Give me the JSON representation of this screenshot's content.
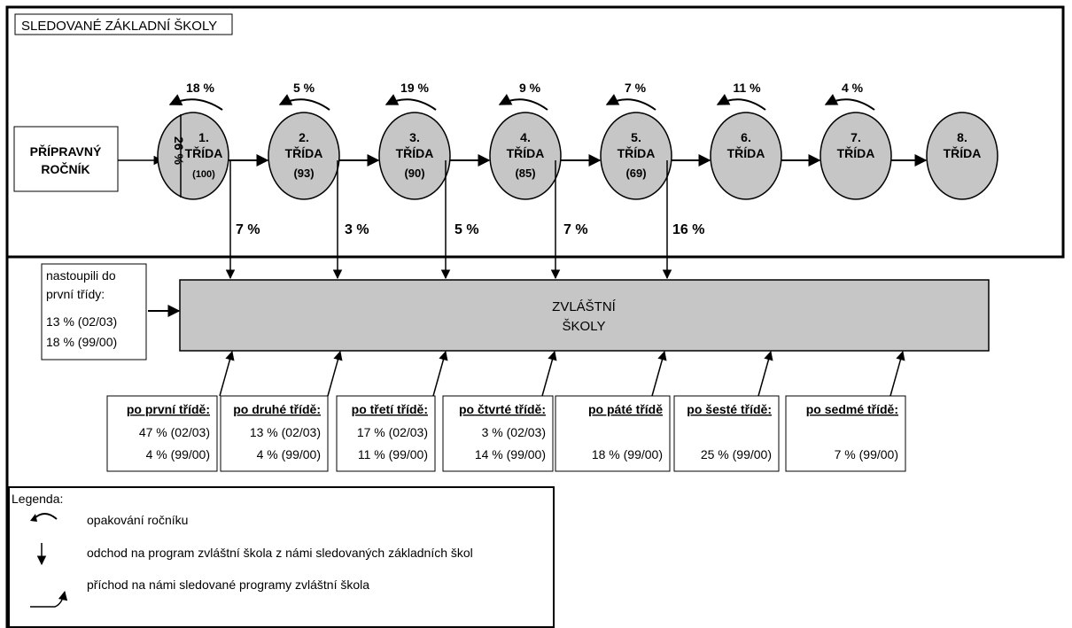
{
  "title": "SLEDOVANÉ ZÁKLADNÍ ŠKOLY",
  "preparatory": {
    "line1": "PŘÍPRAVNÝ",
    "line2": "ROČNÍK"
  },
  "grades": [
    {
      "number": "1.",
      "label": "TŘÍDA",
      "count": "(100)",
      "repeat": "18 %",
      "down": "7 %",
      "side": "26 %"
    },
    {
      "number": "2.",
      "label": "TŘÍDA",
      "count": "(93)",
      "repeat": "5 %",
      "down": "3 %"
    },
    {
      "number": "3.",
      "label": "TŘÍDA",
      "count": "(90)",
      "repeat": "19 %",
      "down": "5 %"
    },
    {
      "number": "4.",
      "label": "TŘÍDA",
      "count": "(85)",
      "repeat": "9 %",
      "down": "7 %"
    },
    {
      "number": "5.",
      "label": "TŘÍDA",
      "count": "(69)",
      "repeat": "7 %",
      "down": "16 %"
    },
    {
      "number": "6.",
      "label": "TŘÍDA",
      "count": "",
      "repeat": "11 %",
      "down": ""
    },
    {
      "number": "7.",
      "label": "TŘÍDA",
      "count": "",
      "repeat": "4 %",
      "down": ""
    },
    {
      "number": "8.",
      "label": "TŘÍDA",
      "count": "",
      "repeat": "",
      "down": ""
    }
  ],
  "entered_first": {
    "line1": "nastoupili do",
    "line2": "první třídy:",
    "line3": "13 % (02/03)",
    "line4": "18 % (99/00)"
  },
  "special_school": {
    "line1": "ZVLÁŠTNÍ",
    "line2": "ŠKOLY"
  },
  "transfers": [
    {
      "header": "po první třídě:",
      "v1": "47 % (02/03)",
      "v2": "4 % (99/00)"
    },
    {
      "header": "po druhé třídě:",
      "v1": "13 % (02/03)",
      "v2": "4 % (99/00)"
    },
    {
      "header": "po třetí třídě:",
      "v1": "17 % (02/03)",
      "v2": "11 % (99/00)"
    },
    {
      "header": "po čtvrté třídě:",
      "v1": "3 % (02/03)",
      "v2": "14 % (99/00)"
    },
    {
      "header": "po páté třídě",
      "v1": "",
      "v2": "18 % (99/00)"
    },
    {
      "header": "po šesté třídě:",
      "v1": "",
      "v2": "25 % (99/00)"
    },
    {
      "header": "po sedmé třídě:",
      "v1": "",
      "v2": "7 % (99/00)"
    }
  ],
  "legend": {
    "title": "Legenda:",
    "items": [
      "opakování ročníku",
      "odchod na program zvláštní škola z námi sledovaných základních škol",
      "příchod na námi sledované programy zvláštní škola"
    ]
  },
  "colors": {
    "ellipse_fill": "#c6c6c6",
    "box_fill": "#c6c6c6",
    "stroke": "#000000",
    "background": "#ffffff"
  }
}
